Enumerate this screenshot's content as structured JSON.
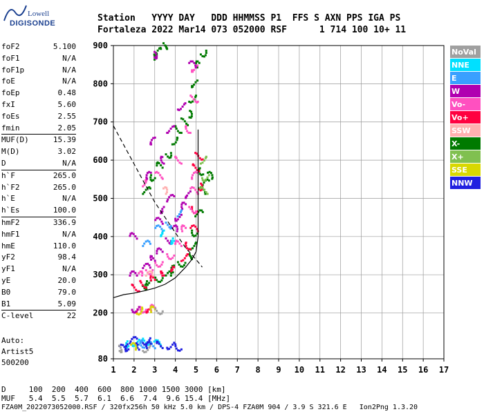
{
  "logo": {
    "top": "Lowell",
    "bottom": "DIGISONDE"
  },
  "header": {
    "line1": "Station   YYYY DAY   DDD HHMMSS P1  FFS S AXN PPS IGA PS",
    "line2": "Fortaleza 2022 Mar14 073 052000 RSF      1 714 100 10+ 11"
  },
  "params": [
    {
      "k": "foF2",
      "v": "5.100"
    },
    {
      "k": "foF1",
      "v": "N/A"
    },
    {
      "k": "foF1p",
      "v": "N/A"
    },
    {
      "k": "foE",
      "v": "N/A"
    },
    {
      "k": "foEp",
      "v": "0.48"
    },
    {
      "k": "fxI",
      "v": "5.60"
    },
    {
      "k": "foEs",
      "v": "2.55"
    },
    {
      "k": "fmin",
      "v": "2.05"
    },
    {
      "k": "MUF(D)",
      "v": "15.39",
      "sep": true
    },
    {
      "k": "M(D)",
      "v": "3.02"
    },
    {
      "k": "D",
      "v": "N/A"
    },
    {
      "k": "h`F",
      "v": "265.0",
      "sep": true
    },
    {
      "k": "h`F2",
      "v": "265.0"
    },
    {
      "k": "h`E",
      "v": "N/A"
    },
    {
      "k": "h`Es",
      "v": "100.0"
    },
    {
      "k": "hmF2",
      "v": "336.9",
      "sep": true
    },
    {
      "k": "hmF1",
      "v": "N/A"
    },
    {
      "k": "hmE",
      "v": "110.0"
    },
    {
      "k": "yF2",
      "v": "98.4"
    },
    {
      "k": "yF1",
      "v": "N/A"
    },
    {
      "k": "yE",
      "v": "20.0"
    },
    {
      "k": "B0",
      "v": "79.0"
    },
    {
      "k": "B1",
      "v": "5.09"
    },
    {
      "k": "C-level",
      "v": "22",
      "sep": true
    }
  ],
  "auto": {
    "l1": "Auto:",
    "l2": "Artist5",
    "l3": "500200"
  },
  "legend": [
    {
      "label": "NoVal",
      "color": "#a0a0a0"
    },
    {
      "label": "NNE",
      "color": "#00e0ff"
    },
    {
      "label": "E",
      "color": "#3aa0ff"
    },
    {
      "label": "W",
      "color": "#b000b0"
    },
    {
      "label": "Vo-",
      "color": "#ff50c0"
    },
    {
      "label": "Vo+",
      "color": "#ff0040"
    },
    {
      "label": "SSW",
      "color": "#ffb0b0"
    },
    {
      "label": "X-",
      "color": "#007a00"
    },
    {
      "label": "X+",
      "color": "#80c050"
    },
    {
      "label": "SSE",
      "color": "#d8d800"
    },
    {
      "label": "NNW",
      "color": "#2020e0"
    }
  ],
  "footer": {
    "line1": "D     100  200  400  600  800 1000 1500 3000 [km]",
    "line2": "MUF   5.4  5.5  5.7  6.1  6.6  7.4  9.6 15.4 [MHz]",
    "line3": "FZA0M_2022073052000.RSF / 320fx256h 50 kHz 5.0 km / DPS-4 FZA0M 904 / 3.9 S 321.6 E   Ion2Png 1.3.20"
  },
  "chart_data": {
    "type": "scatter",
    "title": "",
    "xlabel": "",
    "ylabel": "",
    "xlim": [
      1,
      17
    ],
    "ylim": [
      80,
      900
    ],
    "x_ticks": [
      1,
      2,
      3,
      4,
      5,
      6,
      7,
      8,
      9,
      10,
      11,
      12,
      13,
      14,
      15,
      16,
      17
    ],
    "y_ticks": [
      80,
      200,
      300,
      400,
      500,
      600,
      700,
      800,
      900
    ],
    "grid": true,
    "legend_position": "right",
    "series": [
      {
        "name": "X-",
        "color": "#007a00",
        "points": [
          [
            2.4,
            270
          ],
          [
            2.8,
            282
          ],
          [
            3.2,
            290
          ],
          [
            3.6,
            300
          ],
          [
            4.0,
            315
          ],
          [
            4.3,
            330
          ],
          [
            4.6,
            350
          ],
          [
            4.8,
            375
          ],
          [
            5.0,
            410
          ],
          [
            5.15,
            460
          ],
          [
            5.25,
            520
          ],
          [
            5.35,
            570
          ],
          [
            5.5,
            540
          ],
          [
            5.6,
            560
          ],
          [
            2.6,
            520
          ],
          [
            3.0,
            555
          ],
          [
            3.3,
            585
          ],
          [
            3.6,
            615
          ],
          [
            3.9,
            650
          ],
          [
            4.2,
            680
          ],
          [
            4.4,
            700
          ],
          [
            4.6,
            720
          ],
          [
            4.8,
            760
          ],
          [
            5.0,
            800
          ],
          [
            5.2,
            850
          ],
          [
            5.3,
            880
          ],
          [
            3.4,
            900
          ],
          [
            2.9,
            870
          ],
          [
            3.1,
            885
          ]
        ]
      },
      {
        "name": "Vo+",
        "color": "#ff0040",
        "points": [
          [
            2.1,
            265
          ],
          [
            2.5,
            275
          ],
          [
            3.0,
            288
          ],
          [
            3.5,
            300
          ],
          [
            4.0,
            318
          ],
          [
            4.4,
            345
          ],
          [
            4.7,
            375
          ],
          [
            4.9,
            420
          ],
          [
            5.0,
            470
          ],
          [
            5.1,
            530
          ],
          [
            5.05,
            580
          ],
          [
            5.15,
            610
          ],
          [
            2.3,
            210
          ],
          [
            2.8,
            210
          ]
        ]
      },
      {
        "name": "Vo-",
        "color": "#ff50c0",
        "points": [
          [
            2.2,
            300
          ],
          [
            2.7,
            310
          ],
          [
            3.2,
            330
          ],
          [
            3.8,
            350
          ],
          [
            4.2,
            380
          ],
          [
            4.5,
            420
          ],
          [
            4.8,
            470
          ],
          [
            4.9,
            520
          ],
          [
            5.0,
            560
          ],
          [
            2.4,
            540
          ],
          [
            3.2,
            560
          ],
          [
            4.2,
            600
          ],
          [
            4.7,
            680
          ],
          [
            4.9,
            760
          ],
          [
            5.0,
            840
          ],
          [
            2.5,
            210
          ],
          [
            3.0,
            212
          ]
        ]
      },
      {
        "name": "W",
        "color": "#b000b0",
        "points": [
          [
            2.0,
            300
          ],
          [
            2.6,
            320
          ],
          [
            3.0,
            340
          ],
          [
            3.3,
            360
          ],
          [
            3.6,
            390
          ],
          [
            3.9,
            420
          ],
          [
            4.2,
            450
          ],
          [
            4.5,
            480
          ],
          [
            4.7,
            510
          ],
          [
            3.2,
            440
          ],
          [
            3.5,
            470
          ],
          [
            3.8,
            500
          ],
          [
            2.8,
            560
          ],
          [
            3.5,
            600
          ],
          [
            3.0,
            650
          ],
          [
            3.8,
            680
          ],
          [
            4.3,
            740
          ],
          [
            4.8,
            850
          ],
          [
            2.0,
            400
          ],
          [
            2.1,
            210
          ],
          [
            2.9,
            875
          ]
        ]
      },
      {
        "name": "E",
        "color": "#3aa0ff",
        "points": [
          [
            2.6,
            380
          ],
          [
            3.2,
            420
          ],
          [
            3.6,
            430
          ],
          [
            4.1,
            460
          ],
          [
            2.2,
            120
          ],
          [
            2.5,
            118
          ],
          [
            3.0,
            115
          ]
        ]
      },
      {
        "name": "NNE",
        "color": "#00e0ff",
        "points": [
          [
            1.8,
            118
          ],
          [
            2.1,
            122
          ],
          [
            2.6,
            125
          ],
          [
            3.1,
            120
          ],
          [
            3.5,
            410
          ],
          [
            4.0,
            390
          ]
        ]
      },
      {
        "name": "NNW",
        "color": "#2020e0",
        "points": [
          [
            1.4,
            108
          ],
          [
            1.8,
            110
          ],
          [
            2.3,
            112
          ],
          [
            2.8,
            115
          ],
          [
            3.3,
            116
          ],
          [
            3.8,
            114
          ],
          [
            4.2,
            110
          ],
          [
            2.0,
            128
          ],
          [
            2.6,
            126
          ]
        ]
      },
      {
        "name": "X+",
        "color": "#80c050",
        "points": [
          [
            5.4,
            520
          ],
          [
            5.5,
            555
          ],
          [
            5.3,
            600
          ]
        ]
      },
      {
        "name": "SSE",
        "color": "#d8d800",
        "points": [
          [
            2.2,
            205
          ],
          [
            3.0,
            208
          ],
          [
            1.9,
            112
          ]
        ]
      },
      {
        "name": "SSW",
        "color": "#ffb0b0",
        "points": [
          [
            2.7,
            300
          ],
          [
            3.4,
            520
          ]
        ]
      },
      {
        "name": "NoVal",
        "color": "#a0a0a0",
        "points": [
          [
            1.2,
            106
          ],
          [
            2.6,
            106
          ],
          [
            3.2,
            206
          ]
        ]
      }
    ],
    "profile_curve": [
      [
        1.0,
        240
      ],
      [
        1.5,
        248
      ],
      [
        2.0,
        252
      ],
      [
        2.5,
        258
      ],
      [
        3.0,
        265
      ],
      [
        3.5,
        275
      ],
      [
        4.0,
        292
      ],
      [
        4.5,
        320
      ],
      [
        4.8,
        340
      ],
      [
        5.0,
        360
      ],
      [
        5.1,
        400
      ],
      [
        5.1,
        450
      ],
      [
        5.1,
        500
      ],
      [
        5.1,
        550
      ],
      [
        5.1,
        600
      ],
      [
        5.1,
        650
      ],
      [
        5.1,
        680
      ]
    ],
    "muf_curve": [
      [
        1.0,
        690
      ],
      [
        1.5,
        640
      ],
      [
        2.0,
        590
      ],
      [
        2.5,
        540
      ],
      [
        3.0,
        490
      ],
      [
        3.5,
        450
      ],
      [
        4.0,
        410
      ],
      [
        4.5,
        370
      ],
      [
        5.0,
        340
      ],
      [
        5.3,
        320
      ]
    ]
  }
}
